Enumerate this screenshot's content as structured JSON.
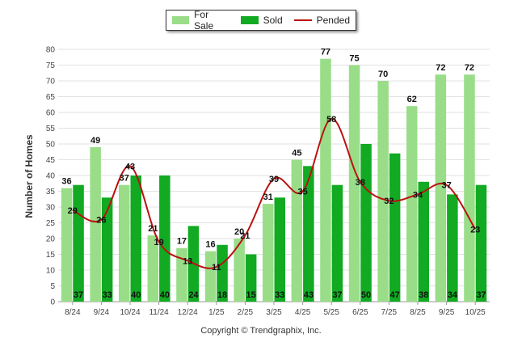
{
  "chart_data": {
    "type": "bar",
    "categories": [
      "8/24",
      "9/24",
      "10/24",
      "11/24",
      "12/24",
      "1/25",
      "2/25",
      "3/25",
      "4/25",
      "5/25",
      "6/25",
      "7/25",
      "8/25",
      "9/25",
      "10/25"
    ],
    "series": [
      {
        "name": "For Sale",
        "type": "bar",
        "color": "#99dd88",
        "values": [
          36,
          49,
          37,
          21,
          17,
          16,
          20,
          31,
          45,
          77,
          75,
          70,
          62,
          72,
          72
        ]
      },
      {
        "name": "Sold",
        "type": "bar",
        "color": "#11aa22",
        "values": [
          37,
          33,
          40,
          40,
          24,
          18,
          15,
          33,
          43,
          37,
          50,
          47,
          38,
          34,
          37
        ]
      },
      {
        "name": "Pended",
        "type": "line",
        "color": "#bb1111",
        "values": [
          29,
          26,
          43,
          19,
          13,
          11,
          21,
          39,
          35,
          58,
          38,
          32,
          34,
          37,
          23
        ]
      }
    ],
    "ylabel": "Number of Homes",
    "ylim": [
      0,
      80
    ],
    "yticks": [
      0,
      5,
      10,
      15,
      20,
      25,
      30,
      35,
      40,
      45,
      50,
      55,
      60,
      65,
      70,
      75,
      80
    ],
    "grid": true,
    "legend_position": "top-center"
  },
  "footer": "Copyright © Trendgraphix, Inc."
}
